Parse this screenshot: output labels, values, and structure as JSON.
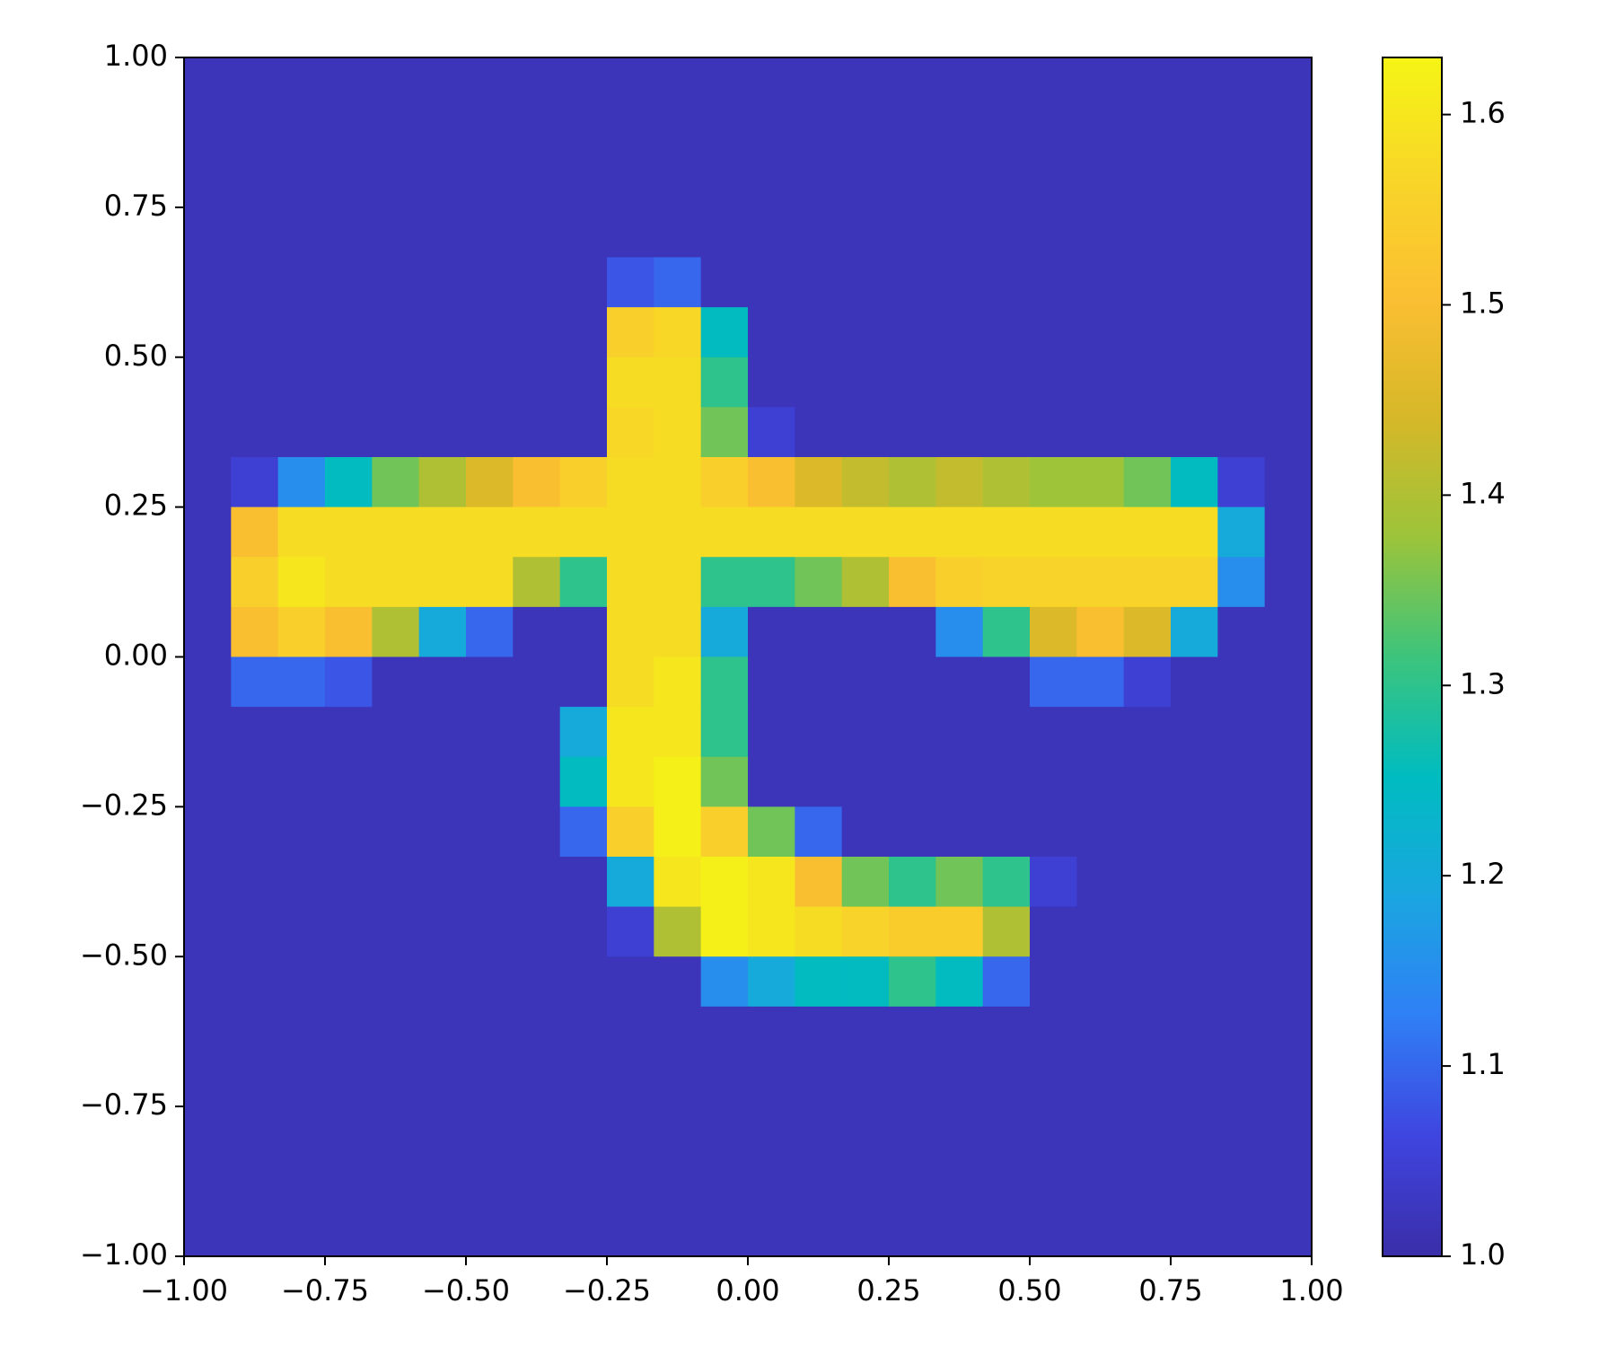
{
  "chart_data": {
    "type": "heatmap",
    "xlim": [
      -1,
      1
    ],
    "ylim": [
      -1,
      1
    ],
    "xticks": [
      {
        "value": -1,
        "label": "−1.00"
      },
      {
        "value": -0.75,
        "label": "−0.75"
      },
      {
        "value": -0.5,
        "label": "−0.50"
      },
      {
        "value": -0.25,
        "label": "−0.25"
      },
      {
        "value": 0,
        "label": "0.00"
      },
      {
        "value": 0.25,
        "label": "0.25"
      },
      {
        "value": 0.5,
        "label": "0.50"
      },
      {
        "value": 0.75,
        "label": "0.75"
      },
      {
        "value": 1,
        "label": "1.00"
      }
    ],
    "yticks": [
      {
        "value": -1,
        "label": "−1.00"
      },
      {
        "value": -0.75,
        "label": "−0.75"
      },
      {
        "value": -0.5,
        "label": "−0.50"
      },
      {
        "value": -0.25,
        "label": "−0.25"
      },
      {
        "value": 0,
        "label": "0.00"
      },
      {
        "value": 0.25,
        "label": "0.25"
      },
      {
        "value": 0.5,
        "label": "0.50"
      },
      {
        "value": 0.75,
        "label": "0.75"
      },
      {
        "value": 1,
        "label": "1.00"
      }
    ],
    "clim": [
      1.0,
      1.63
    ],
    "cticks": [
      {
        "value": 1,
        "label": "1.0"
      },
      1.1,
      1.2,
      1.3,
      1.4,
      1.5,
      1.6
    ],
    "colormap": [
      "#3a2ea8",
      "#3f45e0",
      "#2f7ff5",
      "#1aa6e0",
      "#00bcc0",
      "#3cc47c",
      "#9cc43a",
      "#d6b828",
      "#fbbf32",
      "#f8d628",
      "#f5f515"
    ],
    "z": [
      [
        1.02,
        1.02,
        1.02,
        1.02,
        1.02,
        1.02,
        1.02,
        1.02,
        1.02,
        1.02,
        1.02,
        1.02,
        1.02,
        1.02,
        1.02,
        1.02,
        1.02,
        1.02,
        1.02,
        1.02,
        1.02,
        1.02,
        1.02,
        1.02
      ],
      [
        1.02,
        1.02,
        1.02,
        1.02,
        1.02,
        1.02,
        1.02,
        1.02,
        1.02,
        1.02,
        1.02,
        1.02,
        1.02,
        1.02,
        1.02,
        1.02,
        1.02,
        1.02,
        1.02,
        1.02,
        1.02,
        1.02,
        1.02,
        1.02
      ],
      [
        1.02,
        1.02,
        1.02,
        1.02,
        1.02,
        1.02,
        1.02,
        1.02,
        1.02,
        1.02,
        1.02,
        1.02,
        1.02,
        1.02,
        1.02,
        1.02,
        1.02,
        1.02,
        1.02,
        1.02,
        1.02,
        1.02,
        1.02,
        1.02
      ],
      [
        1.02,
        1.02,
        1.02,
        1.02,
        1.02,
        1.02,
        1.02,
        1.02,
        1.02,
        1.02,
        1.02,
        1.02,
        1.02,
        1.02,
        1.02,
        1.02,
        1.02,
        1.02,
        1.02,
        1.02,
        1.02,
        1.02,
        1.02,
        1.02
      ],
      [
        1.02,
        1.02,
        1.02,
        1.02,
        1.02,
        1.02,
        1.02,
        1.02,
        1.02,
        1.08,
        1.1,
        1.02,
        1.02,
        1.02,
        1.02,
        1.02,
        1.02,
        1.02,
        1.02,
        1.02,
        1.02,
        1.02,
        1.02,
        1.02
      ],
      [
        1.02,
        1.02,
        1.02,
        1.02,
        1.02,
        1.02,
        1.02,
        1.02,
        1.02,
        1.55,
        1.57,
        1.25,
        1.02,
        1.02,
        1.02,
        1.02,
        1.02,
        1.02,
        1.02,
        1.02,
        1.02,
        1.02,
        1.02,
        1.02
      ],
      [
        1.02,
        1.02,
        1.02,
        1.02,
        1.02,
        1.02,
        1.02,
        1.02,
        1.02,
        1.58,
        1.58,
        1.3,
        1.02,
        1.02,
        1.02,
        1.02,
        1.02,
        1.02,
        1.02,
        1.02,
        1.02,
        1.02,
        1.02,
        1.02
      ],
      [
        1.02,
        1.02,
        1.02,
        1.02,
        1.02,
        1.02,
        1.02,
        1.02,
        1.02,
        1.57,
        1.58,
        1.35,
        1.05,
        1.02,
        1.02,
        1.02,
        1.02,
        1.02,
        1.02,
        1.02,
        1.02,
        1.02,
        1.02,
        1.02
      ],
      [
        1.02,
        1.05,
        1.15,
        1.25,
        1.35,
        1.4,
        1.45,
        1.5,
        1.55,
        1.58,
        1.58,
        1.55,
        1.5,
        1.45,
        1.42,
        1.4,
        1.42,
        1.4,
        1.38,
        1.38,
        1.35,
        1.25,
        1.05,
        1.02
      ],
      [
        1.02,
        1.5,
        1.58,
        1.58,
        1.58,
        1.58,
        1.58,
        1.58,
        1.58,
        1.58,
        1.58,
        1.58,
        1.58,
        1.58,
        1.58,
        1.58,
        1.58,
        1.58,
        1.58,
        1.58,
        1.58,
        1.58,
        1.2,
        1.02
      ],
      [
        1.02,
        1.55,
        1.6,
        1.58,
        1.58,
        1.58,
        1.58,
        1.4,
        1.3,
        1.58,
        1.58,
        1.3,
        1.3,
        1.35,
        1.4,
        1.5,
        1.55,
        1.56,
        1.56,
        1.56,
        1.56,
        1.56,
        1.15,
        1.02
      ],
      [
        1.02,
        1.5,
        1.55,
        1.5,
        1.4,
        1.2,
        1.1,
        1.02,
        1.02,
        1.58,
        1.58,
        1.2,
        1.02,
        1.02,
        1.02,
        1.02,
        1.15,
        1.3,
        1.45,
        1.5,
        1.45,
        1.2,
        1.02,
        1.02
      ],
      [
        1.02,
        1.1,
        1.1,
        1.08,
        1.02,
        1.02,
        1.02,
        1.02,
        1.02,
        1.58,
        1.6,
        1.3,
        1.02,
        1.02,
        1.02,
        1.02,
        1.02,
        1.02,
        1.1,
        1.1,
        1.05,
        1.02,
        1.02,
        1.02
      ],
      [
        1.02,
        1.02,
        1.02,
        1.02,
        1.02,
        1.02,
        1.02,
        1.02,
        1.2,
        1.6,
        1.6,
        1.3,
        1.02,
        1.02,
        1.02,
        1.02,
        1.02,
        1.02,
        1.02,
        1.02,
        1.02,
        1.02,
        1.02,
        1.02
      ],
      [
        1.02,
        1.02,
        1.02,
        1.02,
        1.02,
        1.02,
        1.02,
        1.02,
        1.25,
        1.6,
        1.62,
        1.35,
        1.02,
        1.02,
        1.02,
        1.02,
        1.02,
        1.02,
        1.02,
        1.02,
        1.02,
        1.02,
        1.02,
        1.02
      ],
      [
        1.02,
        1.02,
        1.02,
        1.02,
        1.02,
        1.02,
        1.02,
        1.02,
        1.1,
        1.55,
        1.62,
        1.55,
        1.35,
        1.1,
        1.02,
        1.02,
        1.02,
        1.02,
        1.02,
        1.02,
        1.02,
        1.02,
        1.02,
        1.02
      ],
      [
        1.02,
        1.02,
        1.02,
        1.02,
        1.02,
        1.02,
        1.02,
        1.02,
        1.02,
        1.2,
        1.6,
        1.62,
        1.6,
        1.5,
        1.35,
        1.3,
        1.35,
        1.3,
        1.05,
        1.02,
        1.02,
        1.02,
        1.02,
        1.02
      ],
      [
        1.02,
        1.02,
        1.02,
        1.02,
        1.02,
        1.02,
        1.02,
        1.02,
        1.02,
        1.05,
        1.4,
        1.62,
        1.6,
        1.58,
        1.56,
        1.54,
        1.54,
        1.4,
        1.02,
        1.02,
        1.02,
        1.02,
        1.02,
        1.02
      ],
      [
        1.02,
        1.02,
        1.02,
        1.02,
        1.02,
        1.02,
        1.02,
        1.02,
        1.02,
        1.02,
        1.02,
        1.15,
        1.2,
        1.25,
        1.25,
        1.3,
        1.25,
        1.1,
        1.02,
        1.02,
        1.02,
        1.02,
        1.02,
        1.02
      ],
      [
        1.02,
        1.02,
        1.02,
        1.02,
        1.02,
        1.02,
        1.02,
        1.02,
        1.02,
        1.02,
        1.02,
        1.02,
        1.02,
        1.02,
        1.02,
        1.02,
        1.02,
        1.02,
        1.02,
        1.02,
        1.02,
        1.02,
        1.02,
        1.02
      ],
      [
        1.02,
        1.02,
        1.02,
        1.02,
        1.02,
        1.02,
        1.02,
        1.02,
        1.02,
        1.02,
        1.02,
        1.02,
        1.02,
        1.02,
        1.02,
        1.02,
        1.02,
        1.02,
        1.02,
        1.02,
        1.02,
        1.02,
        1.02,
        1.02
      ],
      [
        1.02,
        1.02,
        1.02,
        1.02,
        1.02,
        1.02,
        1.02,
        1.02,
        1.02,
        1.02,
        1.02,
        1.02,
        1.02,
        1.02,
        1.02,
        1.02,
        1.02,
        1.02,
        1.02,
        1.02,
        1.02,
        1.02,
        1.02,
        1.02
      ],
      [
        1.02,
        1.02,
        1.02,
        1.02,
        1.02,
        1.02,
        1.02,
        1.02,
        1.02,
        1.02,
        1.02,
        1.02,
        1.02,
        1.02,
        1.02,
        1.02,
        1.02,
        1.02,
        1.02,
        1.02,
        1.02,
        1.02,
        1.02,
        1.02
      ],
      [
        1.02,
        1.02,
        1.02,
        1.02,
        1.02,
        1.02,
        1.02,
        1.02,
        1.02,
        1.02,
        1.02,
        1.02,
        1.02,
        1.02,
        1.02,
        1.02,
        1.02,
        1.02,
        1.02,
        1.02,
        1.02,
        1.02,
        1.02,
        1.02
      ]
    ]
  }
}
